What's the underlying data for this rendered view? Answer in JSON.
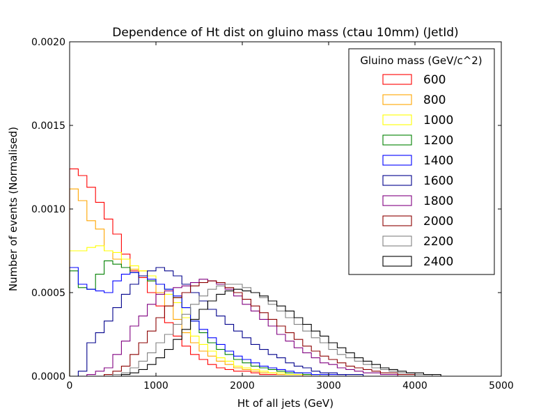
{
  "chart_data": {
    "type": "line",
    "style": "step-histogram",
    "title": "Dependence of Ht dist on gluino mass (ctau 10mm) (JetId)",
    "xlabel": "Ht of all jets (GeV)",
    "ylabel": "Number of events (Normalised)",
    "xlim": [
      0,
      5000
    ],
    "ylim": [
      0,
      0.002
    ],
    "xticks": [
      0,
      1000,
      2000,
      3000,
      4000,
      5000
    ],
    "xtick_labels": [
      "0",
      "1000",
      "2000",
      "3000",
      "4000",
      "5000"
    ],
    "yticks": [
      0,
      0.0005,
      0.001,
      0.0015,
      0.002
    ],
    "ytick_labels": [
      "0.0000",
      "0.0005",
      "0.0010",
      "0.0015",
      "0.0020"
    ],
    "grid": false,
    "legend": {
      "title": "Gluino mass (GeV/c^2)",
      "position": "top-right"
    },
    "bin_width": 100,
    "series": [
      {
        "name": "600",
        "color": "#ff0000",
        "x_start": 0,
        "values": [
          0.00124,
          0.0012,
          0.00113,
          0.00104,
          0.00094,
          0.00085,
          0.00073,
          0.00063,
          0.00059,
          0.0005,
          0.00042,
          0.00032,
          0.00024,
          0.00018,
          0.00013,
          0.0001,
          7e-05,
          5e-05,
          4e-05,
          3e-05,
          3e-05,
          2e-05,
          1e-05,
          1e-05,
          1e-05,
          1e-05,
          1e-05
        ]
      },
      {
        "name": "800",
        "color": "#ffa500",
        "x_start": 0,
        "values": [
          0.00112,
          0.00105,
          0.00093,
          0.00088,
          0.00075,
          0.0007,
          0.00065,
          0.00064,
          0.00063,
          0.00057,
          0.0005,
          0.00042,
          0.00034,
          0.00026,
          0.0002,
          0.00015,
          0.00012,
          9e-05,
          7e-05,
          5e-05,
          4e-05,
          3e-05,
          2e-05,
          2e-05,
          1e-05,
          1e-05,
          1e-05,
          1e-05
        ]
      },
      {
        "name": "1000",
        "color": "#ffff00",
        "x_start": 0,
        "values": [
          0.00075,
          0.00075,
          0.00077,
          0.00078,
          0.00075,
          0.00074,
          0.0007,
          0.00066,
          0.00063,
          0.0006,
          0.00055,
          0.00049,
          0.00044,
          0.00035,
          0.00024,
          0.00019,
          0.00015,
          0.00011,
          9e-05,
          6e-05,
          5e-05,
          4e-05,
          3e-05,
          2e-05,
          2e-05,
          1e-05,
          1e-05,
          1e-05,
          1e-05
        ]
      },
      {
        "name": "1200",
        "color": "#008000",
        "x_start": 0,
        "values": [
          0.00063,
          0.00053,
          0.00052,
          0.00061,
          0.00069,
          0.00067,
          0.00065,
          0.00062,
          0.0006,
          0.00057,
          0.00055,
          0.00052,
          0.00047,
          0.00041,
          0.00033,
          0.00026,
          0.0002,
          0.00016,
          0.00013,
          0.0001,
          8e-05,
          6e-05,
          5e-05,
          4e-05,
          3e-05,
          2e-05,
          2e-05,
          1e-05,
          1e-05,
          1e-05
        ]
      },
      {
        "name": "1400",
        "color": "#0000ff",
        "x_start": 0,
        "values": [
          0.00065,
          0.00055,
          0.00052,
          0.00051,
          0.0005,
          0.00057,
          0.00061,
          0.00062,
          0.0006,
          0.00058,
          0.00055,
          0.00052,
          0.00048,
          0.00041,
          0.00033,
          0.00028,
          0.00023,
          0.00019,
          0.00015,
          0.00012,
          0.0001,
          8e-05,
          6e-05,
          5e-05,
          4e-05,
          3e-05,
          2e-05,
          2e-05,
          1e-05,
          1e-05,
          1e-05,
          1e-05
        ]
      },
      {
        "name": "1600",
        "color": "#00008b",
        "x_start": 0,
        "values": [
          0.0,
          3e-05,
          0.0002,
          0.00026,
          0.00033,
          0.00041,
          0.00049,
          0.00055,
          0.0006,
          0.00063,
          0.00065,
          0.00063,
          0.0006,
          0.00055,
          0.0005,
          0.00045,
          0.0004,
          0.00036,
          0.00031,
          0.00027,
          0.00023,
          0.00019,
          0.00016,
          0.00013,
          0.00011,
          8e-05,
          6e-05,
          5e-05,
          3e-05,
          2e-05,
          2e-05,
          1e-05,
          1e-05,
          1e-05
        ]
      },
      {
        "name": "1800",
        "color": "#800080",
        "x_start": 0,
        "values": [
          0.0,
          0.0,
          1e-05,
          3e-05,
          5e-05,
          0.00013,
          0.00021,
          0.0003,
          0.00036,
          0.00043,
          0.00049,
          0.00051,
          0.00053,
          0.00054,
          0.00056,
          0.00058,
          0.00057,
          0.00055,
          0.00052,
          0.00048,
          0.00043,
          0.00039,
          0.00034,
          0.0003,
          0.00025,
          0.00021,
          0.00017,
          0.00014,
          0.00011,
          8e-05,
          7e-05,
          5e-05,
          4e-05,
          3e-05,
          2e-05,
          2e-05,
          1e-05,
          1e-05
        ]
      },
      {
        "name": "2000",
        "color": "#8b0000",
        "x_start": 0,
        "values": [
          0.0,
          0.0,
          0.0,
          0.0,
          1e-05,
          3e-05,
          6e-05,
          0.00013,
          0.0002,
          0.00027,
          0.00035,
          0.00042,
          0.00047,
          0.0005,
          0.00054,
          0.00056,
          0.00057,
          0.00056,
          0.00053,
          0.0005,
          0.00046,
          0.00042,
          0.00038,
          0.00034,
          0.0003,
          0.00026,
          0.00022,
          0.00018,
          0.00015,
          0.00012,
          0.0001,
          8e-05,
          6e-05,
          5e-05,
          4e-05,
          3e-05,
          2e-05,
          2e-05,
          1e-05,
          1e-05
        ]
      },
      {
        "name": "2200",
        "color": "#808080",
        "x_start": 0,
        "values": [
          0.0,
          0.0,
          0.0,
          0.0,
          0.0,
          1e-05,
          2e-05,
          5e-05,
          9e-05,
          0.00014,
          0.0002,
          0.00025,
          0.00031,
          0.00037,
          0.00043,
          0.00048,
          0.00052,
          0.00054,
          0.00055,
          0.00055,
          0.00053,
          0.0005,
          0.00047,
          0.00043,
          0.00039,
          0.00035,
          0.00031,
          0.00027,
          0.00023,
          0.0002,
          0.00016,
          0.00013,
          0.00011,
          9e-05,
          7e-05,
          5e-05,
          4e-05,
          3e-05,
          2e-05,
          2e-05,
          1e-05,
          1e-05
        ]
      },
      {
        "name": "2400",
        "color": "#000000",
        "x_start": 0,
        "values": [
          0.0,
          0.0,
          0.0,
          0.0,
          0.0,
          0.0,
          1e-05,
          2e-05,
          4e-05,
          7e-05,
          0.00011,
          0.00016,
          0.00022,
          0.00028,
          0.00034,
          0.0004,
          0.00045,
          0.00049,
          0.00051,
          0.00052,
          0.00051,
          0.0005,
          0.00048,
          0.00045,
          0.00042,
          0.00039,
          0.00035,
          0.00031,
          0.00027,
          0.00024,
          0.0002,
          0.00017,
          0.00014,
          0.00011,
          9e-05,
          7e-05,
          5e-05,
          4e-05,
          3e-05,
          2e-05,
          2e-05,
          1e-05,
          1e-05
        ]
      }
    ]
  }
}
